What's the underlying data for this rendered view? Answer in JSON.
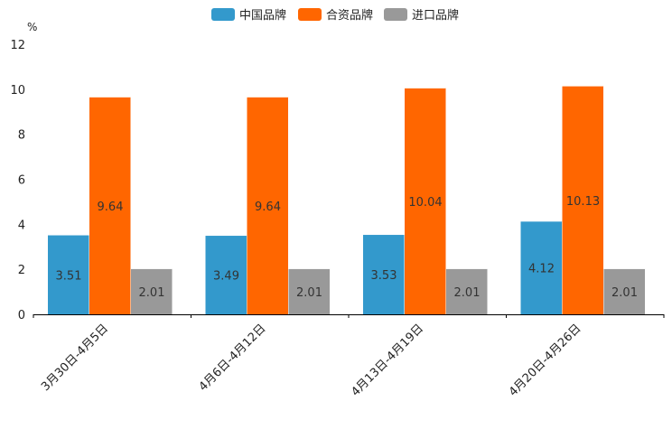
{
  "chart_data": {
    "type": "bar",
    "title": "",
    "xlabel": "",
    "ylabel": "%",
    "ylim": [
      0,
      12
    ],
    "yticks": [
      "0",
      "2",
      "4",
      "6",
      "8",
      "10",
      "12"
    ],
    "grid": false,
    "legend_position": "top",
    "categories": [
      "3月30日-4月5日",
      "4月6日-4月12日",
      "4月13日-4月19日",
      "4月20日-4月26日"
    ],
    "series": [
      {
        "name": "中国品牌",
        "color": "#3399CC",
        "values": [
          3.51,
          3.49,
          3.53,
          4.12
        ],
        "labels": [
          "3.51",
          "3.49",
          "3.53",
          "4.12"
        ]
      },
      {
        "name": "合资品牌",
        "color": "#FF6600",
        "values": [
          9.64,
          9.64,
          10.04,
          10.13
        ],
        "labels": [
          "9.64",
          "9.64",
          "10.04",
          "10.13"
        ]
      },
      {
        "name": "进口品牌",
        "color": "#999999",
        "values": [
          2.01,
          2.01,
          2.01,
          2.01
        ],
        "labels": [
          "2.01",
          "2.01",
          "2.01",
          "2.01"
        ]
      }
    ]
  }
}
